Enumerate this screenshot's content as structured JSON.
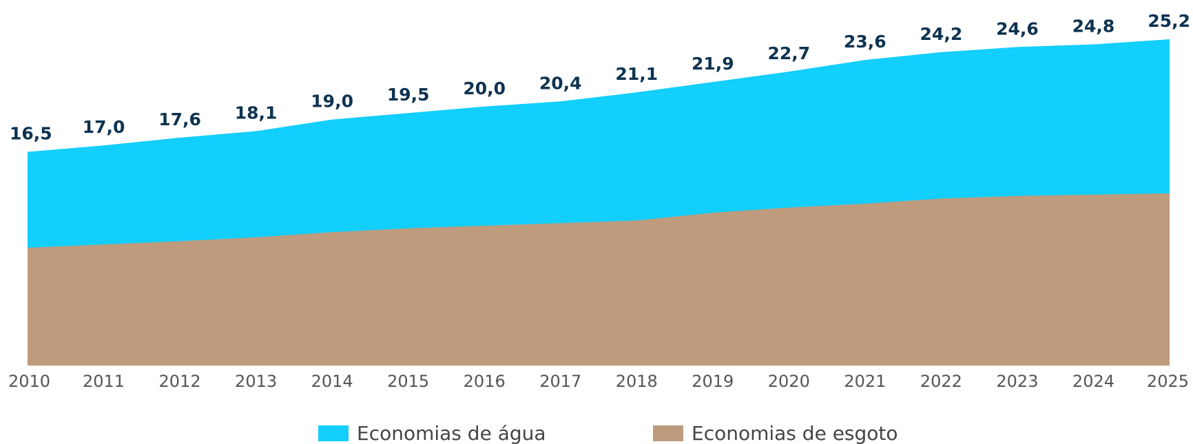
{
  "chart_data": {
    "type": "area",
    "categories": [
      "2010",
      "2011",
      "2012",
      "2013",
      "2014",
      "2015",
      "2016",
      "2017",
      "2018",
      "2019",
      "2020",
      "2021",
      "2022",
      "2023",
      "2024",
      "2025"
    ],
    "series": [
      {
        "name": "Economias de água",
        "color": "#12cffd",
        "values": [
          16.5,
          17.0,
          17.6,
          18.1,
          19.0,
          19.5,
          20.0,
          20.4,
          21.1,
          21.9,
          22.7,
          23.6,
          24.2,
          24.6,
          24.8,
          25.2
        ],
        "value_labels": [
          "16,5",
          "17,0",
          "17,6",
          "18,1",
          "19,0",
          "19,5",
          "20,0",
          "20,4",
          "21,1",
          "21,9",
          "22,7",
          "23,6",
          "24,2",
          "24,6",
          "24,8",
          "25,2"
        ]
      },
      {
        "name": "Economias de esgoto",
        "color": "#be9b7d",
        "values": [
          9.1,
          9.35,
          9.6,
          9.9,
          10.3,
          10.6,
          10.8,
          11.0,
          11.2,
          11.8,
          12.2,
          12.5,
          12.9,
          13.1,
          13.2,
          13.3
        ]
      }
    ]
  }
}
